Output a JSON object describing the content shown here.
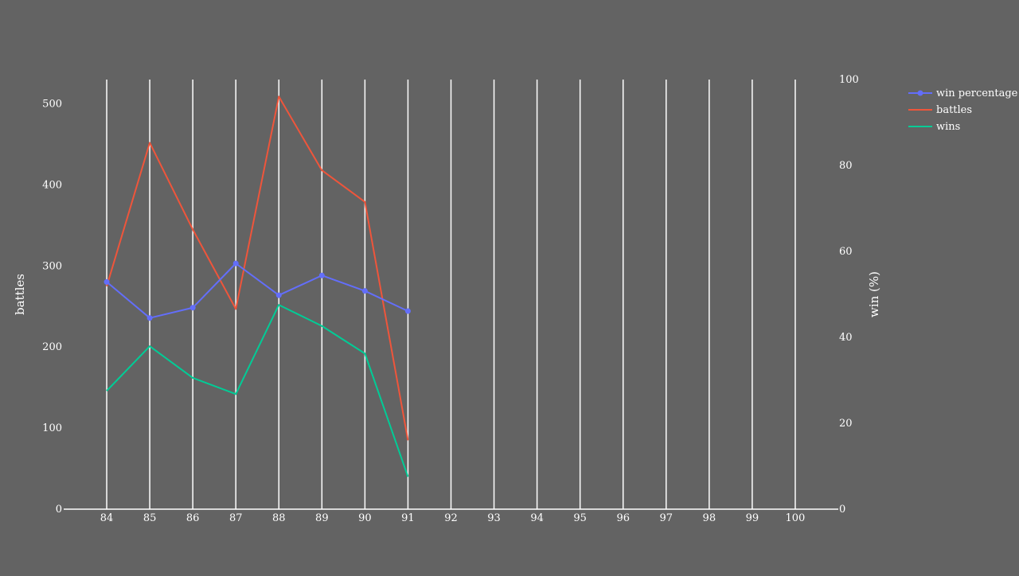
{
  "colors": {
    "background": "#636363",
    "grid": "#ffffff",
    "text": "#ffffff",
    "win_percentage": "#636efa",
    "battles": "#ef553b",
    "wins": "#00cc96"
  },
  "chart_data": {
    "type": "line",
    "x": [
      84,
      85,
      86,
      87,
      88,
      89,
      90,
      91
    ],
    "x_ticks": [
      "84",
      "85",
      "86",
      "87",
      "88",
      "89",
      "90",
      "91",
      "92",
      "93",
      "94",
      "95",
      "96",
      "97",
      "98",
      "99",
      "100"
    ],
    "xlim": [
      83,
      101
    ],
    "y_left": {
      "label": "battles",
      "range": [
        0,
        530
      ],
      "ticks": [
        "0",
        "100",
        "200",
        "300",
        "400",
        "500"
      ]
    },
    "y_right": {
      "label": "win (%)",
      "range": [
        0,
        100
      ],
      "ticks": [
        "0",
        "20",
        "40",
        "60",
        "80",
        "100"
      ]
    },
    "grid": "vertical",
    "legend_position": "top-right",
    "series": [
      {
        "name": "win percentage",
        "axis": "right",
        "markers": true,
        "values": [
          52.9,
          44.5,
          46.9,
          57.2,
          49.8,
          54.4,
          50.8,
          46.1
        ]
      },
      {
        "name": "battles",
        "axis": "left",
        "markers": false,
        "values": [
          275,
          452,
          345,
          247,
          509,
          418,
          379,
          85
        ]
      },
      {
        "name": "wins",
        "axis": "left",
        "markers": false,
        "values": [
          146,
          201,
          162,
          142,
          252,
          226,
          192,
          40
        ]
      }
    ]
  }
}
